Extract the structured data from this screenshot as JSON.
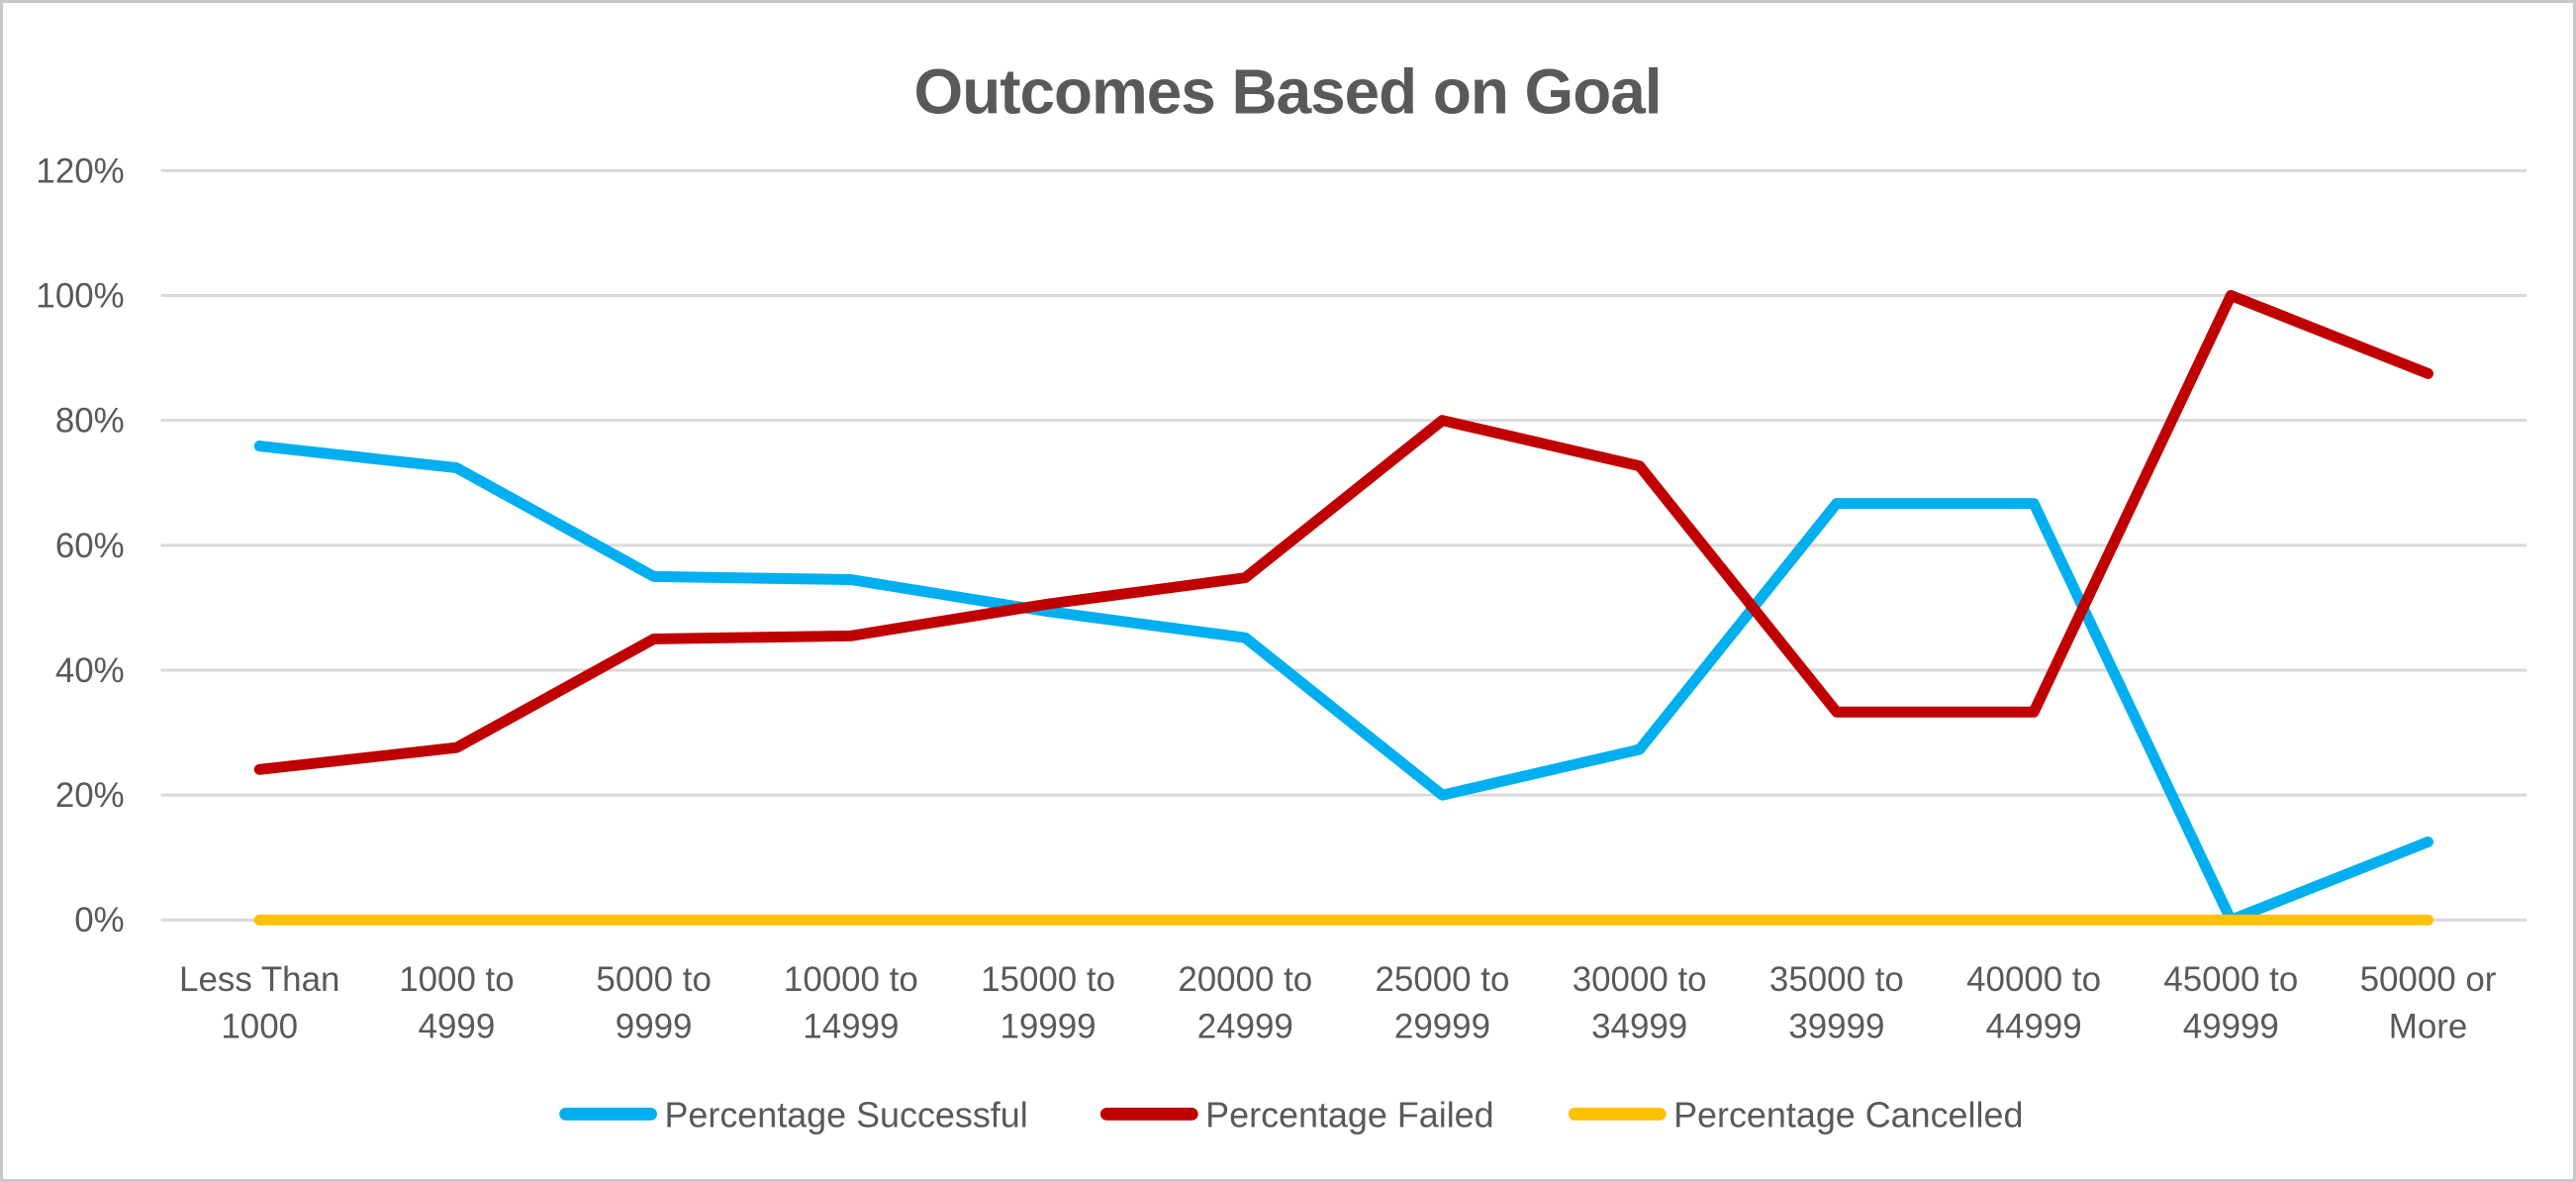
{
  "chart_data": {
    "type": "line",
    "title": "Outcomes Based on Goal",
    "xlabel": "",
    "ylabel": "",
    "ylim": [
      0,
      120
    ],
    "y_tick_step": 20,
    "grid": true,
    "legend_position": "bottom",
    "y_ticks": [
      "0%",
      "20%",
      "40%",
      "60%",
      "80%",
      "100%",
      "120%"
    ],
    "y_tick_values": [
      0,
      20,
      40,
      60,
      80,
      100,
      120
    ],
    "categories": [
      "Less Than 1000",
      "1000 to 4999",
      "5000 to 9999",
      "10000 to 14999",
      "15000 to 19999",
      "20000 to 24999",
      "25000 to 29999",
      "30000 to 34999",
      "35000 to 39999",
      "40000 to 44999",
      "45000 to 49999",
      "50000 or More"
    ],
    "categories_lines": [
      [
        "Less Than",
        "1000"
      ],
      [
        "1000 to",
        "4999"
      ],
      [
        "5000 to",
        "9999"
      ],
      [
        "10000 to",
        "14999"
      ],
      [
        "15000 to",
        "19999"
      ],
      [
        "20000 to",
        "24999"
      ],
      [
        "25000 to",
        "29999"
      ],
      [
        "30000 to",
        "34999"
      ],
      [
        "35000 to",
        "39999"
      ],
      [
        "40000 to",
        "44999"
      ],
      [
        "45000 to",
        "49999"
      ],
      [
        "50000 or",
        "More"
      ]
    ],
    "series": [
      {
        "name": "Percentage Successful",
        "color": "#00AFF0",
        "values": [
          75.9,
          72.4,
          55.0,
          54.5,
          49.4,
          45.2,
          20.0,
          27.3,
          66.7,
          66.7,
          0.0,
          12.5
        ]
      },
      {
        "name": "Percentage Failed",
        "color": "#C00000",
        "values": [
          24.1,
          27.6,
          45.0,
          45.5,
          50.6,
          54.8,
          80.0,
          72.7,
          33.3,
          33.3,
          100.0,
          87.5
        ]
      },
      {
        "name": "Percentage Cancelled",
        "color": "#FFC000",
        "values": [
          0.0,
          0.0,
          0.0,
          0.0,
          0.0,
          0.0,
          0.0,
          0.0,
          0.0,
          0.0,
          0.0,
          0.0
        ]
      }
    ]
  },
  "colors": {
    "text": "#595959",
    "gridline": "#D9D9D9",
    "canvas_border": "#C8C8C8",
    "background": "#FFFFFF"
  }
}
